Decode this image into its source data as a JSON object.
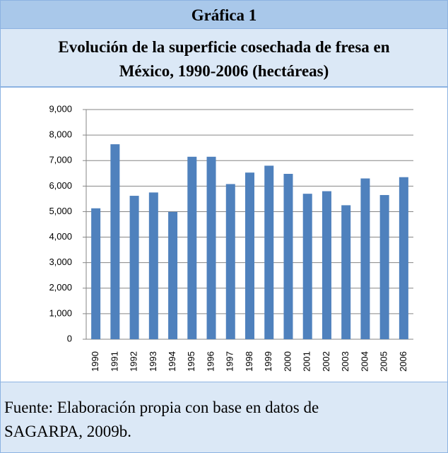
{
  "label": "Gráfica 1",
  "chart_data": {
    "type": "bar",
    "title": [
      "Evolución de la superficie cosechada de fresa en",
      "México, 1990-2006 (hectáreas)"
    ],
    "categories": [
      "1990",
      "1991",
      "1992",
      "1993",
      "1994",
      "1995",
      "1996",
      "1997",
      "1998",
      "1999",
      "2000",
      "2001",
      "2002",
      "2003",
      "2004",
      "2005",
      "2006"
    ],
    "values": [
      5130,
      7640,
      5620,
      5750,
      4990,
      7150,
      7150,
      6080,
      6530,
      6800,
      6480,
      5700,
      5800,
      5250,
      6300,
      5650,
      6350
    ],
    "color": "#4f81bd",
    "ylim": [
      0,
      9000
    ],
    "yticks": [
      0,
      {
        "value": 1000,
        "label": "1,000"
      },
      {
        "value": 2000,
        "label": "2,000"
      },
      {
        "value": 3000,
        "label": "3,000"
      },
      {
        "value": 4000,
        "label": "4,000"
      },
      {
        "value": 5000,
        "label": "5,000"
      },
      {
        "value": 6000,
        "label": "6,000"
      },
      {
        "value": 7000,
        "label": "7,000"
      },
      {
        "value": 8000,
        "label": "8,000"
      },
      {
        "value": 9000,
        "label": "9,000"
      }
    ],
    "grid": true
  },
  "source": [
    "Fuente: Elaboración propia con base en datos de",
    "SAGARPA, 2009b."
  ]
}
